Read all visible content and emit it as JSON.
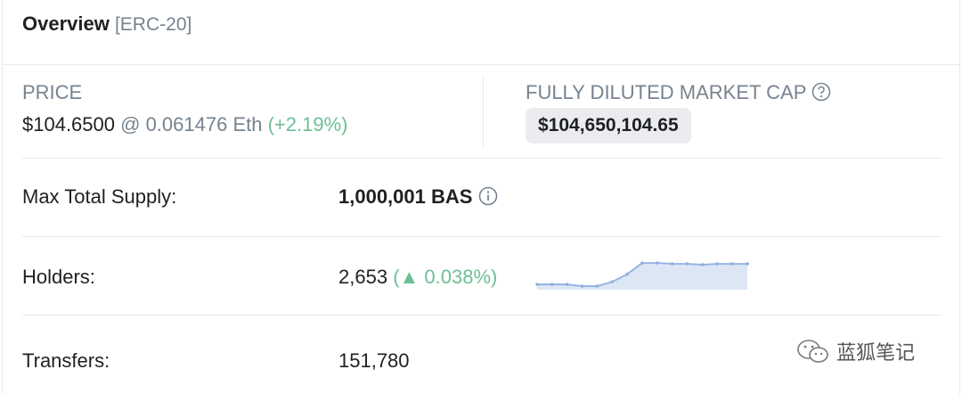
{
  "header": {
    "title": "Overview",
    "subtitle": "[ERC-20]"
  },
  "price": {
    "label": "PRICE",
    "value": "$104.6500",
    "eth": "@ 0.061476 Eth",
    "change": "(+2.19%)"
  },
  "market_cap": {
    "label": "FULLY DILUTED MARKET CAP",
    "value": "$104,650,104.65"
  },
  "supply": {
    "label": "Max Total Supply:",
    "value": "1,000,001 BAS"
  },
  "holders": {
    "label": "Holders:",
    "value": "2,653",
    "change": "(▲ 0.038%)",
    "sparkline": [
      5,
      5,
      5,
      3,
      3,
      8,
      17,
      30,
      30,
      29,
      29,
      28,
      29,
      29,
      29
    ]
  },
  "transfers": {
    "label": "Transfers:",
    "value": "151,780"
  },
  "watermark": "蓝狐笔记"
}
